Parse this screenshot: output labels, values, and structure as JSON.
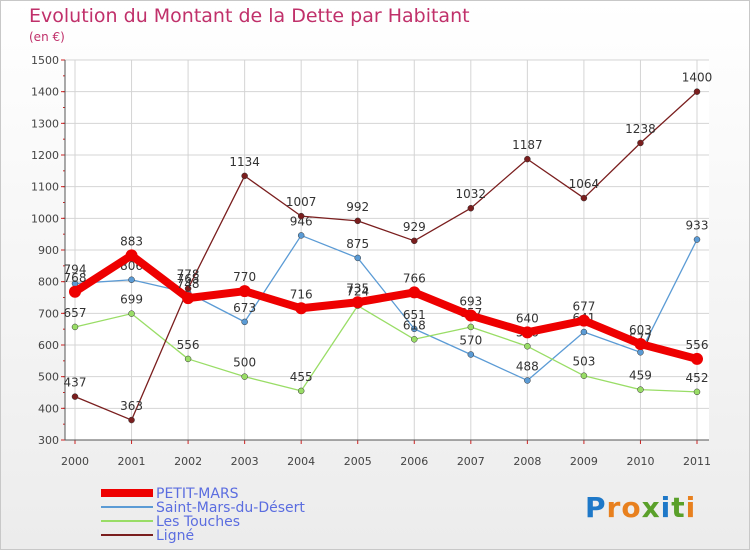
{
  "chart_data": {
    "type": "line",
    "title": "Evolution du Montant de la Dette par Habitant",
    "subtitle": "(en €)",
    "x": [
      "2000",
      "2001",
      "2002",
      "2003",
      "2004",
      "2005",
      "2006",
      "2007",
      "2008",
      "2009",
      "2010",
      "2011"
    ],
    "ylim": [
      300,
      1500
    ],
    "yticks": [
      300,
      400,
      500,
      600,
      700,
      800,
      900,
      1000,
      1100,
      1200,
      1300,
      1400,
      1500
    ],
    "grid": true,
    "legend_position": "bottom-left",
    "series": [
      {
        "name": "Saint-Mars-du-Désert",
        "color": "#5b9bd5",
        "values": [
          794,
          806,
          765,
          673,
          946,
          875,
          651,
          570,
          488,
          641,
          577,
          933
        ],
        "labels": [
          "794",
          "806",
          "765",
          "673",
          "946",
          "875",
          "651",
          "570",
          "488",
          "641",
          "577",
          "933"
        ]
      },
      {
        "name": "Les Touches",
        "color": "#99dd66",
        "values": [
          657,
          699,
          556,
          500,
          455,
          724,
          618,
          657,
          596,
          503,
          459,
          452
        ],
        "labels": [
          "657",
          "699",
          "556",
          "500",
          "455",
          "724",
          "618",
          "657",
          "596",
          "503",
          "459",
          "452"
        ]
      },
      {
        "name": "Ligné",
        "color": "#7a1e1e",
        "values": [
          437,
          363,
          778,
          1134,
          1007,
          992,
          929,
          1032,
          1187,
          1064,
          1238,
          1400
        ],
        "labels": [
          "437",
          "363",
          "778",
          "1134",
          "1007",
          "992",
          "929",
          "1032",
          "1187",
          "1064",
          "1238",
          "1400"
        ]
      },
      {
        "name": "PETIT-MARS",
        "color": "#ee0000",
        "values": [
          768,
          883,
          748,
          770,
          716,
          735,
          766,
          693,
          640,
          677,
          603,
          556
        ],
        "labels": [
          "768",
          "883",
          "748",
          "770",
          "716",
          "735",
          "766",
          "693",
          "640",
          "677",
          "603",
          "556"
        ]
      }
    ]
  },
  "legend": {
    "items": [
      {
        "name": "PETIT-MARS",
        "color": "#ee0000"
      },
      {
        "name": "Saint-Mars-du-Désert",
        "color": "#5b9bd5"
      },
      {
        "name": "Les Touches",
        "color": "#99dd66"
      },
      {
        "name": "Ligné",
        "color": "#7a1e1e"
      }
    ]
  },
  "logo": {
    "text": "Proxiti",
    "colors": [
      "#1e78c8",
      "#e8801e",
      "#e8801e",
      "#5aa02a",
      "#1e78c8",
      "#5aa02a",
      "#e8801e"
    ]
  }
}
